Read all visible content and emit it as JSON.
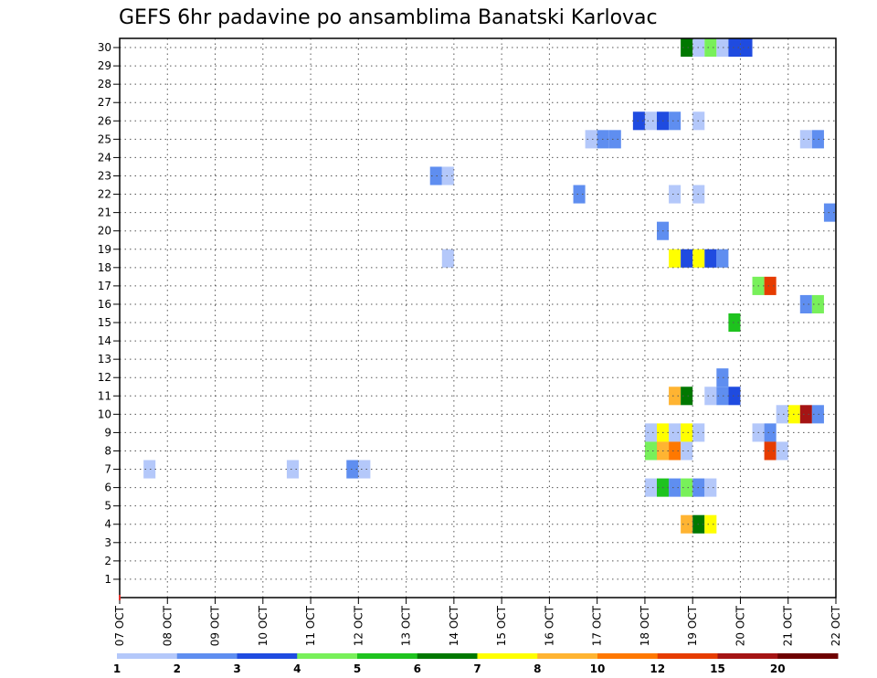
{
  "chart_data": {
    "type": "heatmap",
    "title": "GEFS 6hr padavine po ansamblima Banatski Karlovac",
    "xlabel": "",
    "ylabel": "",
    "x_ticks": [
      "07 OCT",
      "08 OCT",
      "09 OCT",
      "10 OCT",
      "11 OCT",
      "12 OCT",
      "13 OCT",
      "14 OCT",
      "15 OCT",
      "16 OCT",
      "17 OCT",
      "18 OCT",
      "19 OCT",
      "20 OCT",
      "21 OCT",
      "22 OCT"
    ],
    "x_range_days": [
      0,
      15
    ],
    "y_ticks": [
      1,
      2,
      3,
      4,
      5,
      6,
      7,
      8,
      9,
      10,
      11,
      12,
      13,
      14,
      15,
      16,
      17,
      18,
      19,
      20,
      21,
      22,
      23,
      24,
      25,
      26,
      27,
      28,
      29,
      30
    ],
    "y_range": [
      0,
      30
    ],
    "grid": true,
    "step_hours": 6,
    "legend": {
      "labels": [
        "1",
        "2",
        "3",
        "4",
        "5",
        "6",
        "7",
        "8",
        "10",
        "12",
        "15",
        "20"
      ],
      "colors": [
        "#b4c8fa",
        "#5f8ef0",
        "#1f4be0",
        "#78f05a",
        "#1ec31e",
        "#007800",
        "#ffff00",
        "#ffb432",
        "#ff7800",
        "#e63c00",
        "#a51414",
        "#6e0000"
      ]
    },
    "cells": [
      {
        "member": 30,
        "day": 11.75,
        "class": 6
      },
      {
        "member": 30,
        "day": 12.0,
        "class": 1
      },
      {
        "member": 30,
        "day": 12.25,
        "class": 4
      },
      {
        "member": 30,
        "day": 12.5,
        "class": 1
      },
      {
        "member": 30,
        "day": 12.75,
        "class": 3
      },
      {
        "member": 30,
        "day": 13.0,
        "class": 3
      },
      {
        "member": 26,
        "day": 10.75,
        "class": 3
      },
      {
        "member": 26,
        "day": 11.0,
        "class": 1
      },
      {
        "member": 26,
        "day": 11.25,
        "class": 3
      },
      {
        "member": 26,
        "day": 11.5,
        "class": 2
      },
      {
        "member": 26,
        "day": 12.0,
        "class": 1
      },
      {
        "member": 25,
        "day": 9.75,
        "class": 1
      },
      {
        "member": 25,
        "day": 10.0,
        "class": 2
      },
      {
        "member": 25,
        "day": 10.25,
        "class": 2
      },
      {
        "member": 25,
        "day": 14.25,
        "class": 1
      },
      {
        "member": 25,
        "day": 14.5,
        "class": 2
      },
      {
        "member": 23,
        "day": 6.5,
        "class": 2
      },
      {
        "member": 23,
        "day": 6.75,
        "class": 1
      },
      {
        "member": 22,
        "day": 9.5,
        "class": 2
      },
      {
        "member": 22,
        "day": 11.5,
        "class": 1
      },
      {
        "member": 22,
        "day": 12.0,
        "class": 1
      },
      {
        "member": 21,
        "day": 14.75,
        "class": 2
      },
      {
        "member": 20,
        "day": 11.25,
        "class": 2
      },
      {
        "member": 18.5,
        "day": 6.75,
        "class": 1
      },
      {
        "member": 18.5,
        "day": 11.5,
        "class": 7
      },
      {
        "member": 18.5,
        "day": 11.75,
        "class": 3
      },
      {
        "member": 18.5,
        "day": 12.0,
        "class": 7
      },
      {
        "member": 18.5,
        "day": 12.25,
        "class": 3
      },
      {
        "member": 18.5,
        "day": 12.5,
        "class": 2
      },
      {
        "member": 17,
        "day": 13.25,
        "class": 4
      },
      {
        "member": 17,
        "day": 13.5,
        "class": 10
      },
      {
        "member": 16,
        "day": 14.25,
        "class": 2
      },
      {
        "member": 16,
        "day": 14.5,
        "class": 4
      },
      {
        "member": 15,
        "day": 12.75,
        "class": 5
      },
      {
        "member": 12,
        "day": 12.5,
        "class": 2
      },
      {
        "member": 11,
        "day": 11.5,
        "class": 8
      },
      {
        "member": 11,
        "day": 11.75,
        "class": 6
      },
      {
        "member": 11,
        "day": 12.25,
        "class": 1
      },
      {
        "member": 11,
        "day": 12.5,
        "class": 2
      },
      {
        "member": 11,
        "day": 12.75,
        "class": 3
      },
      {
        "member": 10,
        "day": 13.75,
        "class": 1
      },
      {
        "member": 10,
        "day": 14.0,
        "class": 7
      },
      {
        "member": 10,
        "day": 14.25,
        "class": 11
      },
      {
        "member": 10,
        "day": 14.5,
        "class": 2
      },
      {
        "member": 9,
        "day": 11.0,
        "class": 1
      },
      {
        "member": 9,
        "day": 11.25,
        "class": 7
      },
      {
        "member": 9,
        "day": 11.5,
        "class": 1
      },
      {
        "member": 9,
        "day": 11.75,
        "class": 7
      },
      {
        "member": 9,
        "day": 12.0,
        "class": 1
      },
      {
        "member": 9,
        "day": 13.25,
        "class": 1
      },
      {
        "member": 9,
        "day": 13.5,
        "class": 2
      },
      {
        "member": 8,
        "day": 11.0,
        "class": 4
      },
      {
        "member": 8,
        "day": 11.25,
        "class": 8
      },
      {
        "member": 8,
        "day": 11.5,
        "class": 9
      },
      {
        "member": 8,
        "day": 11.75,
        "class": 1
      },
      {
        "member": 8,
        "day": 13.5,
        "class": 10
      },
      {
        "member": 8,
        "day": 13.75,
        "class": 1
      },
      {
        "member": 7,
        "day": 0.5,
        "class": 1
      },
      {
        "member": 7,
        "day": 3.5,
        "class": 1
      },
      {
        "member": 7,
        "day": 4.75,
        "class": 2
      },
      {
        "member": 7,
        "day": 5.0,
        "class": 1
      },
      {
        "member": 6,
        "day": 11.0,
        "class": 1
      },
      {
        "member": 6,
        "day": 11.25,
        "class": 5
      },
      {
        "member": 6,
        "day": 11.5,
        "class": 2
      },
      {
        "member": 6,
        "day": 11.75,
        "class": 4
      },
      {
        "member": 6,
        "day": 12.0,
        "class": 2
      },
      {
        "member": 6,
        "day": 12.25,
        "class": 1
      },
      {
        "member": 4,
        "day": 11.75,
        "class": 8
      },
      {
        "member": 4,
        "day": 12.0,
        "class": 6
      },
      {
        "member": 4,
        "day": 12.25,
        "class": 7
      }
    ]
  }
}
